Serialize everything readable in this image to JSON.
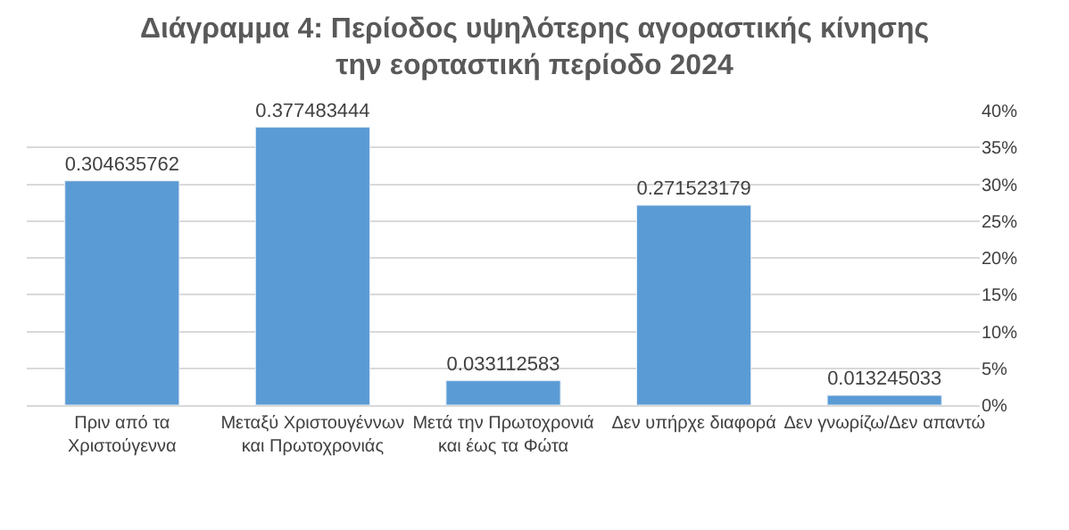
{
  "chart_data": {
    "type": "bar",
    "title": "Διάγραμμα 4: Περίοδος υψηλότερης αγοραστικής κίνησης την εορταστική περίοδο 2024",
    "categories": [
      "Πριν από τα Χριστούγεννα",
      "Μεταξύ Χριστουγέννων και Πρωτοχρονιάς",
      "Μετά την Πρωτοχρονιά και έως τα Φώτα",
      "Δεν υπήρχε διαφορά",
      "Δεν γνωρίζω/Δεν απαντώ"
    ],
    "series": [
      {
        "color": "#5b9bd5",
        "axis": "y2",
        "values": [
          0.304635762,
          0.377483444,
          0.033112583,
          0.271523179,
          0.013245033
        ]
      }
    ],
    "y2lim": [
      0,
      0.4
    ],
    "y2ticks": [
      {
        "value": 0,
        "label": "0%"
      },
      {
        "value": 0.05,
        "label": "5%"
      },
      {
        "value": 0.1,
        "label": "10%"
      },
      {
        "value": 0.15,
        "label": "15%"
      },
      {
        "value": 0.2,
        "label": "20%"
      },
      {
        "value": 0.25,
        "label": "25%"
      },
      {
        "value": 0.3,
        "label": "30%"
      },
      {
        "value": 0.35,
        "label": "35%"
      },
      {
        "value": 0.4,
        "label": "40%"
      }
    ],
    "grid": "y",
    "data_labels": true
  }
}
